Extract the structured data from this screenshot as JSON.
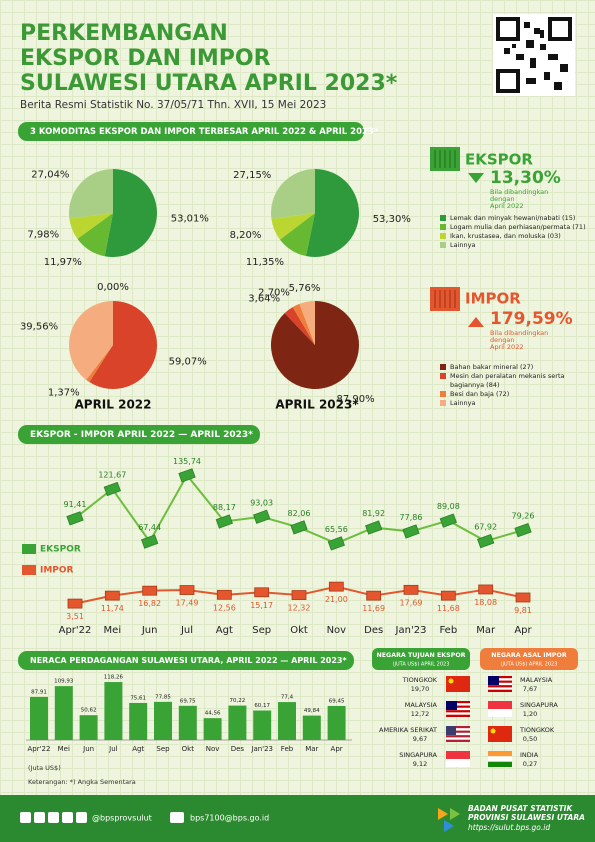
{
  "header": {
    "title_lines": [
      "PERKEMBANGAN",
      "EKSPOR DAN IMPOR",
      "SULAWESI UTARA APRIL 2023*"
    ],
    "subtitle": "Berita Resmi Statistik No. 37/05/71 Thn. XVII, 15 Mei 2023"
  },
  "pie_section": {
    "title": "3 KOMODITAS EKSPOR DAN IMPOR TERBESAR APRIL 2022 & APRIL 2023*",
    "period_labels": [
      "APRIL 2022",
      "APRIL 2023*"
    ]
  },
  "ekspor_info": {
    "label": "EKSPOR",
    "change": "13,30%",
    "note": [
      "Bila dibandingkan",
      "dengan",
      "April 2022"
    ],
    "legend": [
      "Lemak dan minyak hewani/nabati (15)",
      "Logam mulia dan perhiasan/permata (71)",
      "Ikan, krustasea, dan moluska (03)",
      "Lainnya"
    ]
  },
  "impor_info": {
    "label": "IMPOR",
    "change": "179,59%",
    "note": [
      "Bila dibandingkan",
      "dengan",
      "April 2022"
    ],
    "legend": [
      "Bahan bakar mineral (27)",
      "Mesin dan peralatan mekanis serta",
      "bagiannya (84)",
      "Besi dan baja (72)",
      "Lainnya"
    ]
  },
  "chart_data": [
    {
      "type": "pie",
      "values": [
        53.01,
        11.97,
        7.98,
        27.04
      ],
      "value_labels": [
        "53,01%",
        "11,97%",
        "7,98%",
        "27,04%"
      ],
      "colors": [
        "#2f9a3c",
        "#67b932",
        "#bcd631",
        "#a9cf86"
      ]
    },
    {
      "type": "pie",
      "values": [
        53.3,
        11.35,
        8.2,
        27.15
      ],
      "value_labels": [
        "53,30%",
        "11,35%",
        "8,20%",
        "27,15%"
      ],
      "colors": [
        "#2f9a3c",
        "#67b932",
        "#bcd631",
        "#a9cf86"
      ]
    },
    {
      "type": "pie",
      "values": [
        0.0,
        59.07,
        1.37,
        39.56
      ],
      "value_labels": [
        "0,00%",
        "59,07%",
        "1,37%",
        "39,56%"
      ],
      "colors": [
        "#7f2514",
        "#d8432a",
        "#ef7d3c",
        "#f5ad80"
      ]
    },
    {
      "type": "pie",
      "values": [
        87.9,
        3.64,
        2.7,
        5.76
      ],
      "value_labels": [
        "87,90%",
        "3,64%",
        "2,70%",
        "5,76%"
      ],
      "colors": [
        "#7f2514",
        "#d8432a",
        "#ef7d3c",
        "#f5ad80"
      ]
    },
    {
      "type": "line",
      "title": "EKSPOR - IMPOR APRIL 2022 — APRIL 2023*",
      "categories": [
        "Apr'22",
        "Mei",
        "Jun",
        "Jul",
        "Agt",
        "Sep",
        "Okt",
        "Nov",
        "Des",
        "Jan'23",
        "Feb",
        "Mar",
        "Apr"
      ],
      "series": [
        {
          "name": "EKSPOR",
          "color": "#3aa335",
          "values": [
            91.41,
            121.67,
            67.44,
            135.74,
            88.17,
            93.03,
            82.06,
            65.56,
            81.92,
            77.86,
            89.08,
            67.92,
            79.26
          ],
          "value_labels": [
            "91,41",
            "121,67",
            "67,44",
            "135,74",
            "88,17",
            "93,03",
            "82,06",
            "65,56",
            "81,92",
            "77,86",
            "89,08",
            "67,92",
            "79,26"
          ]
        },
        {
          "name": "IMPOR",
          "color": "#e4572e",
          "values": [
            3.51,
            11.74,
            16.82,
            17.49,
            12.56,
            15.17,
            12.32,
            21.0,
            11.69,
            17.69,
            11.68,
            18.08,
            9.81
          ],
          "value_labels": [
            "3,51",
            "11,74",
            "16,82",
            "17,49",
            "12,56",
            "15,17",
            "12,32",
            "21,00",
            "11,69",
            "17,69",
            "11,68",
            "18,08",
            "9,81"
          ]
        }
      ]
    },
    {
      "type": "bar",
      "title": "NERACA PERDAGANGAN SULAWESI UTARA, APRIL 2022 — APRIL 2023*",
      "unit": "(Juta US$)",
      "color": "#3aa335",
      "categories": [
        "Apr'22",
        "Mei",
        "Jun",
        "Jul",
        "Agt",
        "Sep",
        "Okt",
        "Nov",
        "Des",
        "Jan'23",
        "Feb",
        "Mar",
        "Apr"
      ],
      "values": [
        87.91,
        109.93,
        50.62,
        118.26,
        75.61,
        77.85,
        69.75,
        44.56,
        70.22,
        60.17,
        77.4,
        49.84,
        69.45
      ],
      "value_labels": [
        "87,91",
        "109,93",
        "50,62",
        "118,26",
        "75,61",
        "77,85",
        "69,75",
        "44,56",
        "70,22",
        "60,17",
        "77,4",
        "49,84",
        "69,45"
      ]
    }
  ],
  "partners": {
    "ekspor": {
      "title": "NEGARA TUJUAN EKSPOR",
      "subtitle": "(JUTA US$) APRIL 2023",
      "rows": [
        [
          "TIONGKOK",
          "19,70"
        ],
        [
          "MALAYSIA",
          "12,72"
        ],
        [
          "AMERIKA SERIKAT",
          "9,67"
        ],
        [
          "SINGAPURA",
          "9,12"
        ]
      ]
    },
    "impor": {
      "title": "NEGARA ASAL IMPOR",
      "subtitle": "(JUTA US$) APRIL 2023",
      "rows": [
        [
          "MALAYSIA",
          "7,67"
        ],
        [
          "SINGAPURA",
          "1,20"
        ],
        [
          "TIONGKOK",
          "0,50"
        ],
        [
          "INDIA",
          "0,27"
        ]
      ]
    }
  },
  "note": "Keterangan: *) Angka Sementara",
  "footer": {
    "social": "@bpsprovsulut",
    "email": "bps7100@bps.go.id",
    "org_lines": [
      "BADAN PUSAT STATISTIK",
      "PROVINSI SULAWESI UTARA"
    ],
    "url": "https://sulut.bps.go.id"
  }
}
